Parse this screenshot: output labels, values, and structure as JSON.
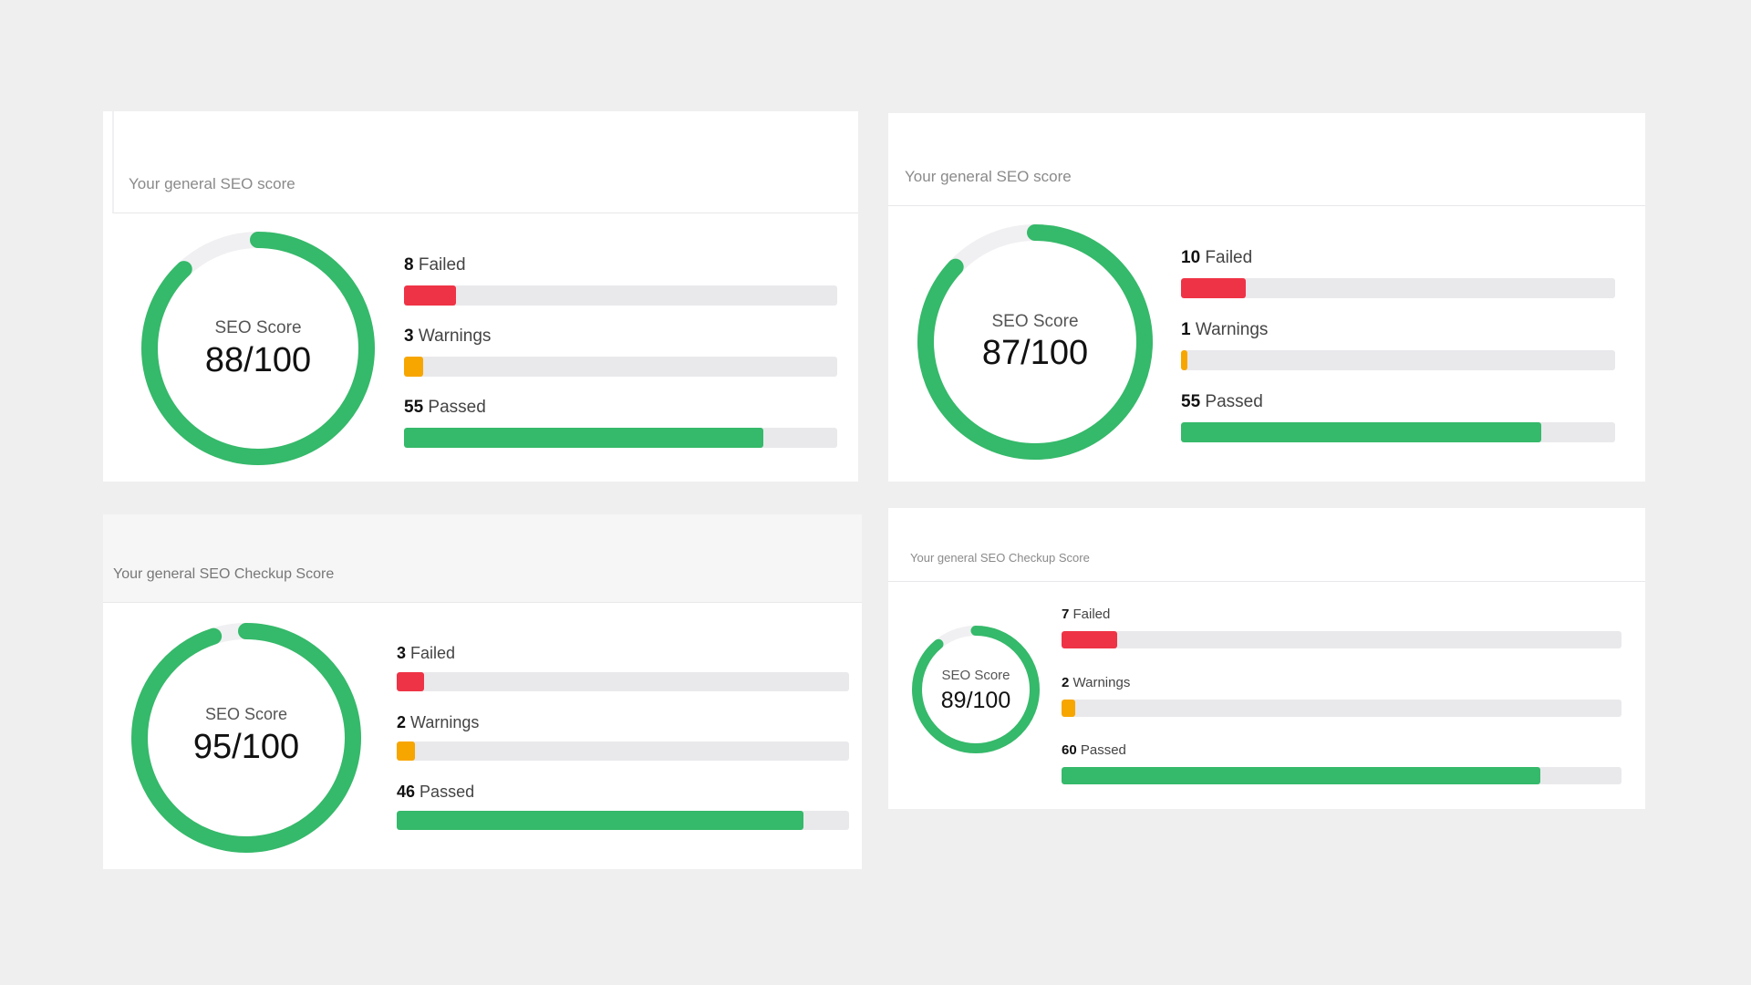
{
  "colors": {
    "failed": "#ef3346",
    "warnings": "#f7a600",
    "passed": "#35b96a",
    "gauge": "#35b96a",
    "gauge_track": "#f0f0f2"
  },
  "cards": [
    {
      "title": "Your general SEO score",
      "gauge_label": "SEO Score",
      "score_text": "88/100",
      "score": 88,
      "metrics": [
        {
          "count": "8",
          "label": "Failed",
          "fraction": 0.12
        },
        {
          "count": "3",
          "label": "Warnings",
          "fraction": 0.045
        },
        {
          "count": "55",
          "label": "Passed",
          "fraction": 0.83
        }
      ]
    },
    {
      "title": "Your general SEO score",
      "gauge_label": "SEO Score",
      "score_text": "87/100",
      "score": 87,
      "metrics": [
        {
          "count": "10",
          "label": "Failed",
          "fraction": 0.15
        },
        {
          "count": "1",
          "label": "Warnings",
          "fraction": 0.015
        },
        {
          "count": "55",
          "label": "Passed",
          "fraction": 0.83
        }
      ]
    },
    {
      "title": "Your general SEO Checkup Score",
      "gauge_label": "SEO Score",
      "score_text": "95/100",
      "score": 95,
      "metrics": [
        {
          "count": "3",
          "label": "Failed",
          "fraction": 0.06
        },
        {
          "count": "2",
          "label": "Warnings",
          "fraction": 0.04
        },
        {
          "count": "46",
          "label": "Passed",
          "fraction": 0.9
        }
      ]
    },
    {
      "title": "Your general SEO Checkup Score",
      "gauge_label": "SEO Score",
      "score_text": "89/100",
      "score": 89,
      "metrics": [
        {
          "count": "7",
          "label": "Failed",
          "fraction": 0.1
        },
        {
          "count": "2",
          "label": "Warnings",
          "fraction": 0.025
        },
        {
          "count": "60",
          "label": "Passed",
          "fraction": 0.855
        }
      ]
    }
  ]
}
